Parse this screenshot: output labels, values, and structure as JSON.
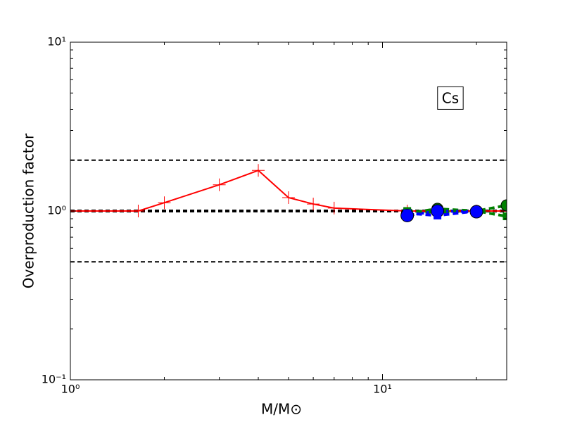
{
  "chart_data": {
    "type": "line",
    "xlabel": "M/M⊙",
    "ylabel": "Overproduction factor",
    "xscale": "log",
    "yscale": "log",
    "xlim": [
      1,
      25
    ],
    "ylim": [
      0.1,
      10
    ],
    "xticks": [
      {
        "value": 1,
        "label": "10⁰"
      },
      {
        "value": 10,
        "label": "10¹"
      }
    ],
    "yticks": [
      {
        "value": 0.1,
        "label": "10⁻¹"
      },
      {
        "value": 1,
        "label": "10⁰"
      },
      {
        "value": 10,
        "label": "10¹"
      }
    ],
    "xminorticks": [
      2,
      3,
      4,
      5,
      6,
      7,
      8,
      9,
      20
    ],
    "yminorticks": [
      0.2,
      0.3,
      0.4,
      0.5,
      0.6,
      0.7,
      0.8,
      0.9,
      2,
      3,
      4,
      5,
      6,
      7,
      8,
      9
    ],
    "hlines": [
      {
        "y": 2,
        "linewidth": 2
      },
      {
        "y": 1,
        "linewidth": 4
      },
      {
        "y": 0.5,
        "linewidth": 2
      }
    ],
    "annotation": {
      "text": "Cs",
      "x": 16.5,
      "y": 4.6
    },
    "series": [
      {
        "color": "#ff0000",
        "linestyle": "solid",
        "marker": "plus",
        "markersize": 9,
        "x": [
          1,
          1.65,
          2,
          3,
          4,
          5,
          6,
          7,
          12,
          15,
          20,
          25
        ],
        "values": [
          1.0,
          1.0,
          1.12,
          1.43,
          1.74,
          1.2,
          1.1,
          1.04,
          1.0,
          1.0,
          1.0,
          1.0
        ]
      },
      {
        "color": "#008000",
        "linestyle": "dashed",
        "marker": "circle",
        "markersize": 8,
        "x": [
          12,
          15,
          20,
          25
        ],
        "values": [
          0.97,
          1.03,
          1.0,
          1.08
        ]
      },
      {
        "color": "#008000",
        "linestyle": "dashed",
        "marker": "square",
        "markersize": 5,
        "x": [
          12,
          15,
          20,
          25
        ],
        "values": [
          1.0,
          0.98,
          1.0,
          0.93
        ]
      },
      {
        "color": "#0000ff",
        "linestyle": "dotted",
        "marker": "circle",
        "markersize": 9,
        "x": [
          12,
          15,
          20
        ],
        "values": [
          0.94,
          1.0,
          0.99
        ]
      },
      {
        "color": "#0000ff",
        "linestyle": "dashed",
        "marker": "square",
        "markersize": 5,
        "x": [
          12,
          15,
          20
        ],
        "values": [
          0.97,
          0.94,
          1.0
        ]
      }
    ]
  }
}
